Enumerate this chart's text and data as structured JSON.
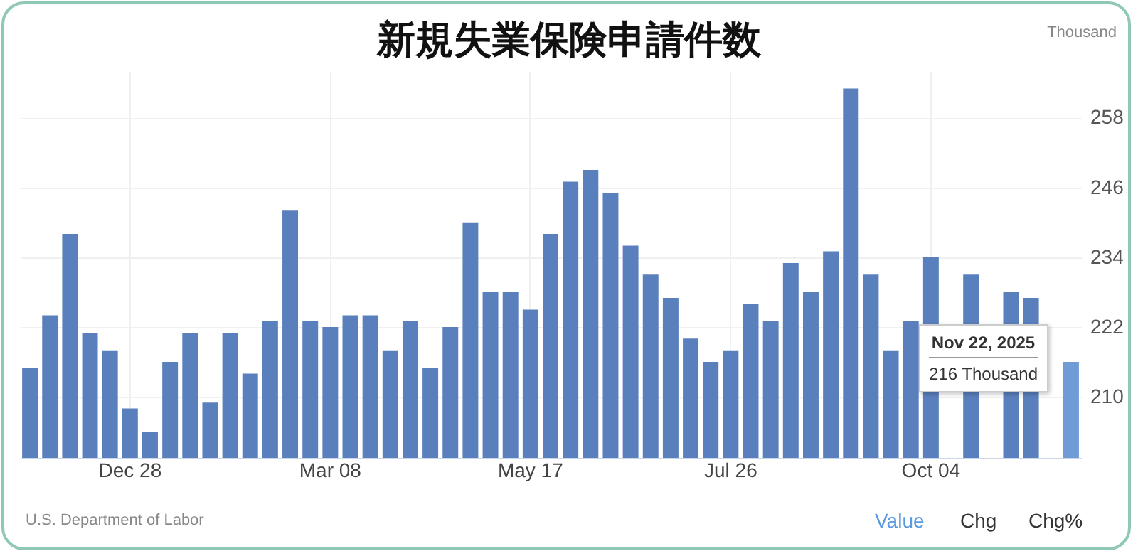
{
  "chart_data": {
    "type": "bar",
    "title": "新規失業保険申請件数",
    "ylabel": "Thousand",
    "categories": [
      null,
      null,
      null,
      null,
      null,
      "Dec 28",
      null,
      null,
      null,
      null,
      null,
      null,
      null,
      null,
      null,
      "Mar 08",
      null,
      null,
      null,
      null,
      null,
      null,
      null,
      null,
      null,
      "May 17",
      null,
      null,
      null,
      null,
      null,
      null,
      null,
      null,
      null,
      "Jul 26",
      null,
      null,
      null,
      null,
      null,
      null,
      null,
      null,
      null,
      "Oct 04",
      null,
      null,
      null,
      null,
      null,
      null,
      null
    ],
    "values": [
      215,
      224,
      238,
      221,
      218,
      208,
      204,
      216,
      221,
      209,
      221,
      214,
      223,
      242,
      223,
      222,
      224,
      224,
      218,
      223,
      215,
      222,
      240,
      228,
      228,
      225,
      238,
      247,
      249,
      245,
      236,
      231,
      227,
      220,
      216,
      218,
      226,
      223,
      233,
      228,
      235,
      263,
      231,
      218,
      223,
      234,
      null,
      231,
      null,
      228,
      227,
      null,
      216
    ],
    "colors": [
      "#5a7fbd",
      "#5a7fbd",
      "#5a7fbd",
      "#5a7fbd",
      "#5a7fbd",
      "#5a7fbd",
      "#5a7fbd",
      "#5a7fbd",
      "#5a7fbd",
      "#5a7fbd",
      "#5a7fbd",
      "#5a7fbd",
      "#5a7fbd",
      "#5a7fbd",
      "#5a7fbd",
      "#5a7fbd",
      "#5a7fbd",
      "#5a7fbd",
      "#5a7fbd",
      "#5a7fbd",
      "#5a7fbd",
      "#5a7fbd",
      "#5a7fbd",
      "#5a7fbd",
      "#5a7fbd",
      "#5a7fbd",
      "#5a7fbd",
      "#5a7fbd",
      "#5a7fbd",
      "#5a7fbd",
      "#5a7fbd",
      "#5a7fbd",
      "#5a7fbd",
      "#5a7fbd",
      "#5a7fbd",
      "#5a7fbd",
      "#5a7fbd",
      "#5a7fbd",
      "#5a7fbd",
      "#5a7fbd",
      "#5a7fbd",
      "#5a7fbd",
      "#5a7fbd",
      "#5a7fbd",
      "#5a7fbd",
      "#5a7fbd",
      "#5a7fbd",
      "#5a7fbd",
      "#5a7fbd",
      "#5a7fbd",
      "#5a7fbd",
      "#5a7fbd",
      "#6f9bd6"
    ],
    "ylim": [
      199.5,
      266
    ],
    "yticks": [
      210,
      222,
      234,
      246,
      258
    ],
    "grid": true,
    "annotations": [
      "Nov 22, 2025",
      "216 Thousand",
      "U.S. Department of Labor",
      "Value",
      "Chg",
      "Chg%"
    ]
  }
}
